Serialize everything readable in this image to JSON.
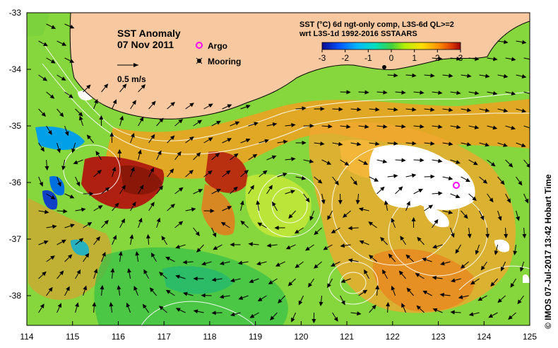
{
  "map": {
    "title": "SST Anomaly",
    "date": "07 Nov 2011",
    "scale_label": "0.5 m/s",
    "legend": {
      "argo_label": "Argo",
      "mooring_label": "Mooring"
    },
    "colorbar": {
      "title_line1": "SST (°C) 6d ngt-only comp, L3S-6d QL>=2",
      "title_line2": "wrt L3S-1d 1992-2016 SSTAARS",
      "ticks": [
        "-3",
        "-2",
        "-1",
        "0",
        "1",
        "2",
        "3"
      ],
      "colors": [
        "#0a0a8c",
        "#0050ff",
        "#00b4ff",
        "#00e0c0",
        "#40d040",
        "#b4f000",
        "#ffe000",
        "#ff9000",
        "#e04000",
        "#a00000"
      ]
    },
    "credit": "© IMOS 07-Jul-2017 13:42 Hobart Time",
    "x_ticks": [
      "114",
      "115",
      "116",
      "117",
      "118",
      "119",
      "120",
      "121",
      "122",
      "123",
      "124",
      "125"
    ],
    "y_ticks": [
      "-33",
      "-34",
      "-35",
      "-36",
      "-37",
      "-38"
    ],
    "argo_color": "#ff00ff",
    "land_color": "#f8c8a0"
  }
}
